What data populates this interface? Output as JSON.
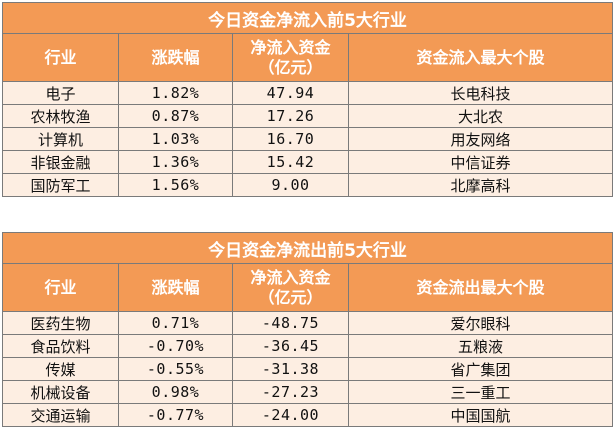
{
  "inflow": {
    "title": "今日资金净流入前5大行业",
    "headers": {
      "industry": "行业",
      "change": "涨跌幅",
      "net_line1": "净流入资金",
      "net_line2": "（亿元）",
      "stock": "资金流入最大个股"
    },
    "rows": [
      {
        "industry": "电子",
        "change": "1.82%",
        "net": "47.94",
        "stock": "长电科技"
      },
      {
        "industry": "农林牧渔",
        "change": "0.87%",
        "net": "17.26",
        "stock": "大北农"
      },
      {
        "industry": "计算机",
        "change": "1.03%",
        "net": "16.70",
        "stock": "用友网络"
      },
      {
        "industry": "非银金融",
        "change": "1.36%",
        "net": "15.42",
        "stock": "中信证券"
      },
      {
        "industry": "国防军工",
        "change": "1.56%",
        "net": "9.00",
        "stock": "北摩高科"
      }
    ]
  },
  "outflow": {
    "title": "今日资金净流出前5大行业",
    "headers": {
      "industry": "行业",
      "change": "涨跌幅",
      "net_line1": "净流入资金",
      "net_line2": "（亿元）",
      "stock": "资金流出最大个股"
    },
    "rows": [
      {
        "industry": "医药生物",
        "change": "0.71%",
        "net": "-48.75",
        "stock": "爱尔眼科"
      },
      {
        "industry": "食品饮料",
        "change": "-0.70%",
        "net": "-36.45",
        "stock": "五粮液"
      },
      {
        "industry": "传媒",
        "change": "-0.55%",
        "net": "-31.38",
        "stock": "省广集团"
      },
      {
        "industry": "机械设备",
        "change": "0.98%",
        "net": "-27.23",
        "stock": "三一重工"
      },
      {
        "industry": "交通运输",
        "change": "-0.77%",
        "net": "-24.00",
        "stock": "中国国航"
      }
    ]
  },
  "colors": {
    "header_bg": "#f39a55",
    "row_bg": "#fdeee2",
    "border": "#7a7a7a"
  }
}
